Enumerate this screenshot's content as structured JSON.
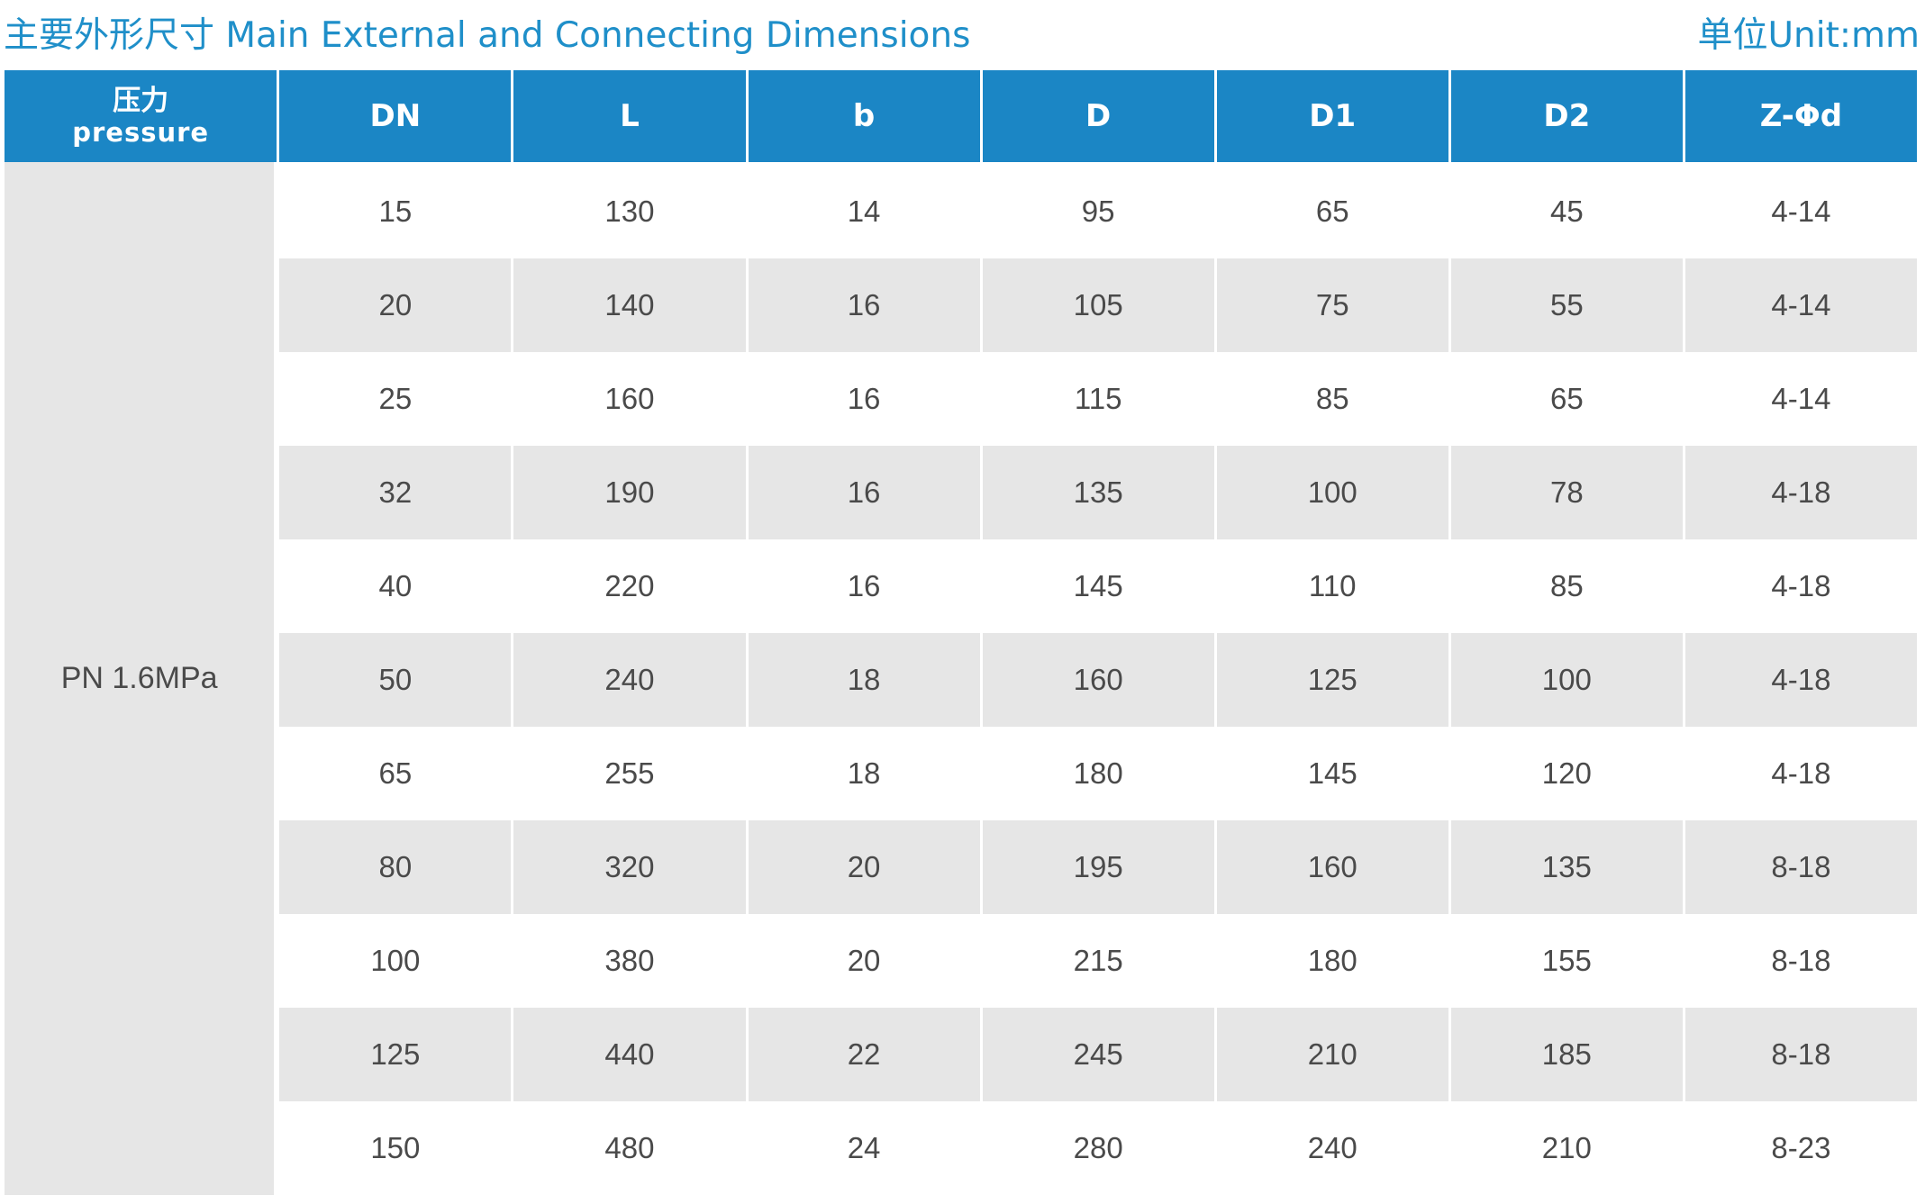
{
  "title": {
    "left": "主要外形尺寸 Main External and Connecting Dimensions",
    "right": "单位Unit:mm"
  },
  "table": {
    "headers": {
      "pressure_cn": "压力",
      "pressure_en": "pressure",
      "cols": [
        "DN",
        "L",
        "b",
        "D",
        "D1",
        "D2",
        "Z-Φd"
      ]
    },
    "pressure": "PN 1.6MPa",
    "rows": [
      [
        "15",
        "130",
        "14",
        "95",
        "65",
        "45",
        "4-14"
      ],
      [
        "20",
        "140",
        "16",
        "105",
        "75",
        "55",
        "4-14"
      ],
      [
        "25",
        "160",
        "16",
        "115",
        "85",
        "65",
        "4-14"
      ],
      [
        "32",
        "190",
        "16",
        "135",
        "100",
        "78",
        "4-18"
      ],
      [
        "40",
        "220",
        "16",
        "145",
        "110",
        "85",
        "4-18"
      ],
      [
        "50",
        "240",
        "18",
        "160",
        "125",
        "100",
        "4-18"
      ],
      [
        "65",
        "255",
        "18",
        "180",
        "145",
        "120",
        "4-18"
      ],
      [
        "80",
        "320",
        "20",
        "195",
        "160",
        "135",
        "8-18"
      ],
      [
        "100",
        "380",
        "20",
        "215",
        "180",
        "155",
        "8-18"
      ],
      [
        "125",
        "440",
        "22",
        "245",
        "210",
        "185",
        "8-18"
      ],
      [
        "150",
        "480",
        "24",
        "280",
        "240",
        "210",
        "8-23"
      ]
    ]
  },
  "colors": {
    "header_bg": "#1b86c5",
    "title_text": "#1f8fc9",
    "stripe": "#e6e6e6"
  }
}
